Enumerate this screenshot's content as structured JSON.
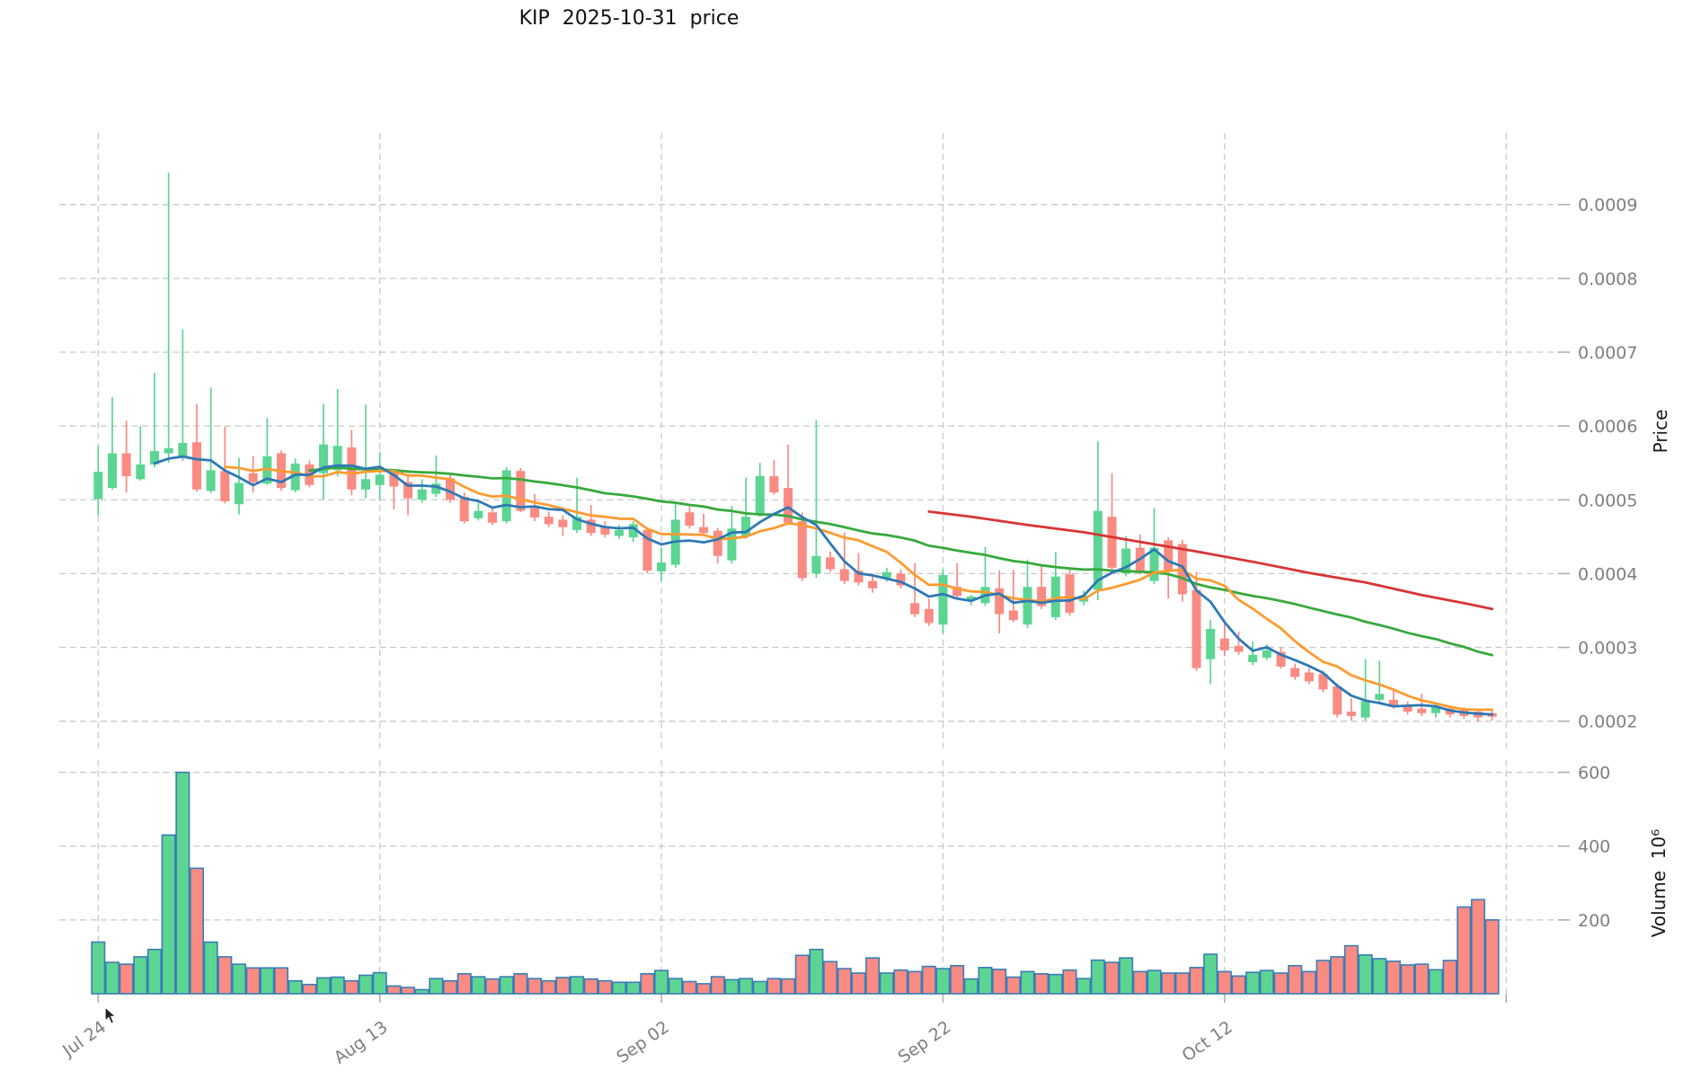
{
  "title": "KIP  2025-10-31  price",
  "price_axis": {
    "label": "Price",
    "tick_labels": [
      "0.0009",
      "0.0008",
      "0.0007",
      "0.0006",
      "0.0005",
      "0.0004",
      "0.0003",
      "0.0002"
    ],
    "tick_values_micro": [
      900,
      800,
      700,
      600,
      500,
      400,
      300,
      200
    ]
  },
  "volume_axis": {
    "label": "Volume  10⁶",
    "tick_labels": [
      "600",
      "400",
      "200"
    ],
    "tick_values": [
      600,
      400,
      200
    ]
  },
  "x_axis": {
    "tick_labels": [
      "Jul 24",
      "Aug 13",
      "Sep 02",
      "Sep 22",
      "Oct 12"
    ],
    "tick_indices": [
      0,
      20,
      40,
      60,
      80
    ],
    "gridline_indices": [
      0,
      20,
      40,
      60,
      80,
      100
    ]
  },
  "colors": {
    "up": "#5CD592",
    "down": "#F98B83",
    "volume_border": "#3A7CB8",
    "ma_blue": "#2E79B5",
    "ma_orange": "#FF9B30",
    "ma_green": "#37A93C",
    "ma_red": "#D93434",
    "grid": "#C9C9C9",
    "tick_mark": "#AFAFAF",
    "tick_text": "#7F7F7F",
    "title_text": "#111111"
  },
  "chart_data": {
    "type": "candlestick+volume",
    "symbol": "KIP",
    "as_of_date": "2025-10-31",
    "start_date": "2025-07-24",
    "end_date": "2025-10-31",
    "frequency": "daily",
    "price_unit": "1e-6",
    "volume_unit": "1e6",
    "price_ylim_micro": [
      163,
      997
    ],
    "volume_ylim": [
      0,
      633
    ],
    "grid": true,
    "legend": false,
    "candles_ohlcv": [
      [
        501,
        573,
        479,
        538,
        140
      ],
      [
        516,
        639,
        514,
        563,
        85
      ],
      [
        563,
        607,
        510,
        532,
        80
      ],
      [
        528,
        600,
        526,
        548,
        100
      ],
      [
        548,
        672,
        544,
        566,
        120
      ],
      [
        563,
        943,
        550,
        570,
        430
      ],
      [
        557,
        731,
        553,
        577,
        600
      ],
      [
        578,
        630,
        511,
        514,
        340
      ],
      [
        512,
        652,
        509,
        540,
        140
      ],
      [
        539,
        599,
        495,
        498,
        100
      ],
      [
        494,
        557,
        480,
        523,
        80
      ],
      [
        536,
        559,
        510,
        524,
        70
      ],
      [
        522,
        611,
        520,
        559,
        70
      ],
      [
        563,
        567,
        512,
        516,
        70
      ],
      [
        513,
        556,
        510,
        549,
        35
      ],
      [
        548,
        553,
        517,
        520,
        25
      ],
      [
        536,
        630,
        500,
        575,
        43
      ],
      [
        540,
        650,
        532,
        573,
        45
      ],
      [
        571,
        595,
        506,
        514,
        35
      ],
      [
        514,
        629,
        502,
        528,
        50
      ],
      [
        520,
        565,
        499,
        534,
        57
      ],
      [
        538,
        541,
        487,
        518,
        21
      ],
      [
        524,
        534,
        479,
        502,
        17
      ],
      [
        500,
        528,
        496,
        514,
        11
      ],
      [
        508,
        560,
        504,
        522,
        41
      ],
      [
        529,
        534,
        496,
        500,
        35
      ],
      [
        504,
        510,
        468,
        471,
        54
      ],
      [
        475,
        496,
        472,
        485,
        46
      ],
      [
        483,
        488,
        466,
        469,
        40
      ],
      [
        471,
        544,
        468,
        540,
        46
      ],
      [
        539,
        543,
        483,
        485,
        54
      ],
      [
        489,
        508,
        471,
        476,
        41
      ],
      [
        477,
        484,
        463,
        467,
        35
      ],
      [
        473,
        479,
        451,
        463,
        44
      ],
      [
        459,
        530,
        455,
        477,
        46
      ],
      [
        473,
        493,
        451,
        455,
        40
      ],
      [
        463,
        471,
        449,
        453,
        35
      ],
      [
        451,
        466,
        447,
        459,
        31
      ],
      [
        449,
        471,
        443,
        467,
        31
      ],
      [
        459,
        463,
        400,
        404,
        54
      ],
      [
        403,
        435,
        390,
        415,
        63
      ],
      [
        412,
        497,
        408,
        473,
        41
      ],
      [
        483,
        491,
        461,
        465,
        33
      ],
      [
        463,
        481,
        451,
        455,
        27
      ],
      [
        458,
        462,
        414,
        424,
        46
      ],
      [
        418,
        492,
        414,
        461,
        38
      ],
      [
        451,
        530,
        447,
        477,
        41
      ],
      [
        481,
        550,
        477,
        532,
        33
      ],
      [
        532,
        554,
        507,
        510,
        41
      ],
      [
        516,
        575,
        467,
        469,
        40
      ],
      [
        471,
        483,
        390,
        394,
        104
      ],
      [
        400,
        608,
        394,
        424,
        120
      ],
      [
        422,
        430,
        402,
        406,
        87
      ],
      [
        406,
        456,
        386,
        390,
        68
      ],
      [
        404,
        428,
        384,
        388,
        56
      ],
      [
        390,
        400,
        374,
        380,
        97
      ],
      [
        394,
        408,
        389,
        402,
        56
      ],
      [
        400,
        406,
        380,
        384,
        64
      ],
      [
        360,
        414,
        341,
        345,
        60
      ],
      [
        352,
        366,
        329,
        333,
        74
      ],
      [
        331,
        406,
        319,
        398,
        68
      ],
      [
        382,
        414,
        367,
        370,
        76
      ],
      [
        365,
        371,
        357,
        369,
        40
      ],
      [
        360,
        436,
        356,
        382,
        71
      ],
      [
        380,
        404,
        319,
        345,
        66
      ],
      [
        350,
        405,
        334,
        337,
        45
      ],
      [
        331,
        419,
        326,
        382,
        60
      ],
      [
        382,
        411,
        352,
        356,
        54
      ],
      [
        341,
        429,
        337,
        396,
        52
      ],
      [
        399,
        407,
        343,
        347,
        64
      ],
      [
        362,
        377,
        357,
        370,
        41
      ],
      [
        378,
        579,
        364,
        485,
        91
      ],
      [
        477,
        536,
        404,
        408,
        85
      ],
      [
        400,
        451,
        396,
        434,
        97
      ],
      [
        435,
        453,
        399,
        402,
        60
      ],
      [
        390,
        489,
        386,
        435,
        63
      ],
      [
        445,
        449,
        366,
        405,
        56
      ],
      [
        440,
        446,
        362,
        372,
        56
      ],
      [
        378,
        402,
        268,
        272,
        71
      ],
      [
        284,
        337,
        250,
        325,
        107
      ],
      [
        312,
        333,
        288,
        296,
        60
      ],
      [
        302,
        321,
        290,
        294,
        48
      ],
      [
        280,
        308,
        276,
        290,
        58
      ],
      [
        286,
        304,
        283,
        296,
        63
      ],
      [
        294,
        300,
        271,
        274,
        56
      ],
      [
        272,
        278,
        256,
        260,
        76
      ],
      [
        266,
        272,
        250,
        254,
        60
      ],
      [
        264,
        268,
        239,
        243,
        90
      ],
      [
        247,
        251,
        205,
        209,
        100
      ],
      [
        213,
        231,
        201,
        207,
        130
      ],
      [
        205,
        284,
        201,
        227,
        105
      ],
      [
        229,
        282,
        225,
        237,
        95
      ],
      [
        229,
        241,
        217,
        221,
        88
      ],
      [
        221,
        227,
        209,
        213,
        78
      ],
      [
        217,
        237,
        207,
        211,
        80
      ],
      [
        211,
        225,
        205,
        219,
        65
      ],
      [
        217,
        221,
        205,
        209,
        90
      ],
      [
        215,
        219,
        203,
        207,
        235
      ],
      [
        213,
        217,
        199,
        205,
        255
      ],
      [
        211,
        215,
        201,
        206,
        200
      ]
    ],
    "moving_averages": [
      {
        "name": "ma-blue",
        "window": 5,
        "min_periods": 5,
        "source": "close",
        "color_key": "ma_blue"
      },
      {
        "name": "ma-orange",
        "window": 10,
        "min_periods": 10,
        "source": "close",
        "color_key": "ma_orange"
      },
      {
        "name": "ma-green",
        "window": 30,
        "min_periods": 16,
        "source": "close",
        "color_key": "ma_green"
      },
      {
        "name": "ma-red",
        "window": 60,
        "source": "precomputed",
        "color_key": "ma_red",
        "points_micro": [
          [
            59,
            484
          ],
          [
            62,
            477
          ],
          [
            66,
            466
          ],
          [
            70,
            456
          ],
          [
            74,
            443
          ],
          [
            78,
            430
          ],
          [
            82,
            416
          ],
          [
            86,
            401
          ],
          [
            90,
            388
          ],
          [
            94,
            371
          ],
          [
            97,
            360
          ],
          [
            99,
            352
          ]
        ]
      }
    ]
  }
}
